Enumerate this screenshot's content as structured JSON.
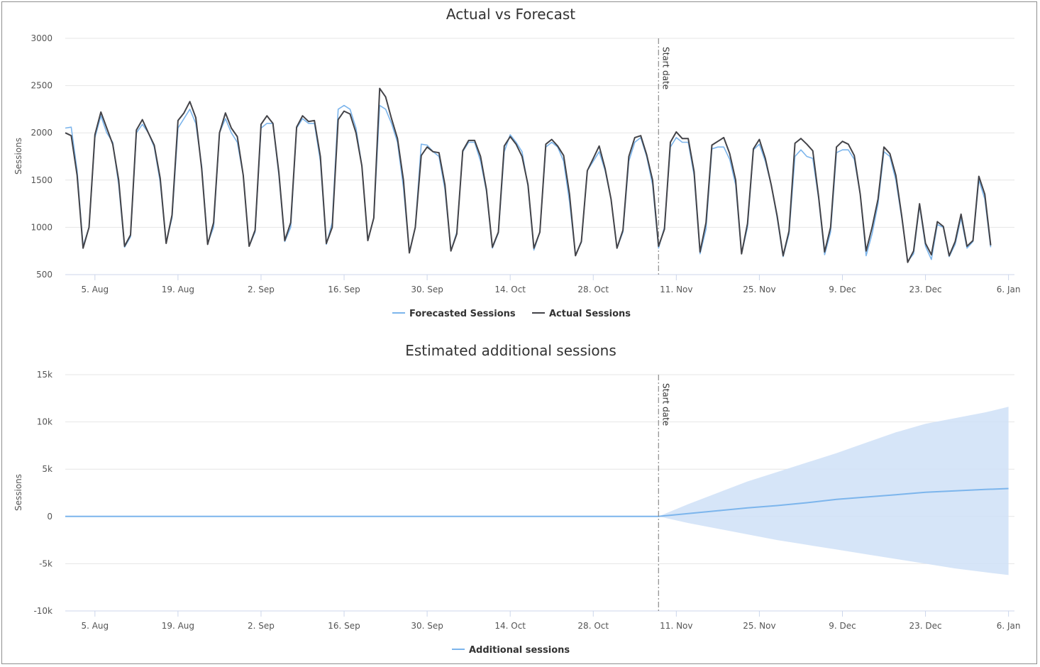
{
  "chart_data": [
    {
      "type": "line",
      "title": "Actual vs Forecast",
      "xlabel": "",
      "ylabel": "Sessions",
      "ylim": [
        500,
        3000
      ],
      "y_ticks": [
        "3000",
        "2500",
        "2000",
        "1500",
        "1000",
        "500"
      ],
      "x_tick_labels": [
        "5. Aug",
        "19. Aug",
        "2. Sep",
        "16. Sep",
        "30. Sep",
        "14. Oct",
        "28. Oct",
        "11. Nov",
        "25. Nov",
        "9. Dec",
        "23. Dec",
        "6. Jan"
      ],
      "x_range": [
        "2018-07-31",
        "2019-01-07"
      ],
      "grid": true,
      "legend_position": "bottom",
      "plot_line": {
        "date": "2018-11-08",
        "label": "Start date"
      },
      "series": [
        {
          "name": "Forecasted Sessions",
          "color": "#7cb5ec",
          "start": "2018-07-31",
          "values": [
            2050,
            2060,
            1600,
            800,
            1000,
            1950,
            2180,
            2000,
            1900,
            1450,
            790,
            900,
            2000,
            2090,
            2000,
            1850,
            1480,
            840,
            1100,
            2050,
            2150,
            2250,
            2100,
            1650,
            830,
            1000,
            2000,
            2150,
            2000,
            1900,
            1550,
            800,
            950,
            2050,
            2100,
            2100,
            1550,
            850,
            1000,
            2050,
            2150,
            2100,
            2100,
            1700,
            820,
            1050,
            2250,
            2290,
            2250,
            2050,
            1650,
            860,
            1100,
            2290,
            2250,
            2100,
            1900,
            1420,
            740,
            1000,
            1880,
            1870,
            1800,
            1750,
            1400,
            750,
            950,
            1800,
            1900,
            1900,
            1700,
            1380,
            780,
            940,
            1800,
            1980,
            1900,
            1800,
            1430,
            760,
            950,
            1850,
            1900,
            1850,
            1700,
            1270,
            710,
            840,
            1600,
            1700,
            1800,
            1600,
            1300,
            780,
            950,
            1700,
            1900,
            1950,
            1750,
            1450,
            780,
            1000,
            1850,
            1950,
            1900,
            1900,
            1550,
            720,
            980,
            1830,
            1850,
            1850,
            1720,
            1450,
            720,
            1000,
            1820,
            1880,
            1700,
            1450,
            1100,
            690,
            930,
            1750,
            1820,
            1750,
            1730,
            1300,
            710,
            950,
            1790,
            1820,
            1820,
            1720,
            1350,
            700,
            930,
            1250,
            1800,
            1750,
            1500,
            1100,
            640,
            720,
            1230,
            800,
            660,
            1030,
            1000,
            690,
            820,
            1100,
            780,
            850,
            1500,
            1300,
            790
          ]
        },
        {
          "name": "Actual Sessions",
          "color": "#434348",
          "start": "2018-07-31",
          "values": [
            2000,
            1970,
            1550,
            780,
            1000,
            1980,
            2220,
            2050,
            1880,
            1500,
            800,
            920,
            2030,
            2140,
            2000,
            1870,
            1520,
            830,
            1130,
            2130,
            2210,
            2330,
            2160,
            1620,
            820,
            1050,
            2000,
            2210,
            2050,
            1960,
            1550,
            800,
            970,
            2090,
            2180,
            2100,
            1580,
            860,
            1050,
            2060,
            2180,
            2120,
            2130,
            1750,
            830,
            1000,
            2140,
            2230,
            2200,
            2000,
            1650,
            860,
            1100,
            2470,
            2380,
            2150,
            1940,
            1500,
            730,
            1000,
            1760,
            1850,
            1800,
            1790,
            1450,
            750,
            930,
            1810,
            1920,
            1920,
            1750,
            1400,
            790,
            950,
            1860,
            1960,
            1880,
            1750,
            1450,
            780,
            950,
            1880,
            1930,
            1860,
            1760,
            1350,
            700,
            850,
            1600,
            1730,
            1860,
            1620,
            1300,
            780,
            970,
            1750,
            1950,
            1970,
            1770,
            1500,
            800,
            980,
            1900,
            2010,
            1940,
            1940,
            1590,
            740,
            1050,
            1870,
            1910,
            1950,
            1780,
            1500,
            720,
            1040,
            1830,
            1930,
            1730,
            1450,
            1120,
            700,
            960,
            1890,
            1940,
            1880,
            1810,
            1320,
            740,
            1000,
            1850,
            1910,
            1880,
            1760,
            1350,
            750,
            1000,
            1300,
            1850,
            1780,
            1550,
            1120,
            630,
            750,
            1250,
            830,
            710,
            1060,
            1010,
            700,
            850,
            1140,
            800,
            860,
            1540,
            1350,
            810
          ]
        }
      ]
    },
    {
      "type": "area",
      "title": "Estimated additional sessions",
      "xlabel": "",
      "ylabel": "Sessions",
      "ylim": [
        -10000,
        15000
      ],
      "y_ticks": [
        "15k",
        "10k",
        "5k",
        "0",
        "-5k",
        "-10k"
      ],
      "x_tick_labels": [
        "5. Aug",
        "19. Aug",
        "2. Sep",
        "16. Sep",
        "30. Sep",
        "14. Oct",
        "28. Oct",
        "11. Nov",
        "25. Nov",
        "9. Dec",
        "23. Dec",
        "6. Jan"
      ],
      "x_range": [
        "2018-07-31",
        "2019-01-07"
      ],
      "grid": true,
      "legend_position": "bottom",
      "plot_line": {
        "date": "2018-11-08",
        "label": "Start date"
      },
      "series": [
        {
          "name": "Additional sessions",
          "color": "#7cb5ec",
          "points": [
            [
              "2018-07-31",
              0
            ],
            [
              "2018-11-08",
              0
            ],
            [
              "2018-11-13",
              300
            ],
            [
              "2018-11-18",
              600
            ],
            [
              "2018-11-23",
              900
            ],
            [
              "2018-11-28",
              1150
            ],
            [
              "2018-12-03",
              1450
            ],
            [
              "2018-12-08",
              1800
            ],
            [
              "2018-12-13",
              2050
            ],
            [
              "2018-12-18",
              2300
            ],
            [
              "2018-12-23",
              2550
            ],
            [
              "2018-12-28",
              2700
            ],
            [
              "2019-01-02",
              2850
            ],
            [
              "2019-01-06",
              2950
            ]
          ]
        },
        {
          "name": "range",
          "color": "#cfe1f7",
          "points_high": [
            [
              "2018-11-08",
              0
            ],
            [
              "2018-11-13",
              1300
            ],
            [
              "2018-11-18",
              2500
            ],
            [
              "2018-11-23",
              3700
            ],
            [
              "2018-11-28",
              4700
            ],
            [
              "2018-12-03",
              5700
            ],
            [
              "2018-12-08",
              6700
            ],
            [
              "2018-12-13",
              7800
            ],
            [
              "2018-12-18",
              8900
            ],
            [
              "2018-12-23",
              9800
            ],
            [
              "2018-12-28",
              10400
            ],
            [
              "2019-01-02",
              11000
            ],
            [
              "2019-01-06",
              11600
            ]
          ],
          "points_low": [
            [
              "2018-11-08",
              0
            ],
            [
              "2018-11-13",
              -700
            ],
            [
              "2018-11-18",
              -1300
            ],
            [
              "2018-11-23",
              -1900
            ],
            [
              "2018-11-28",
              -2500
            ],
            [
              "2018-12-03",
              -3000
            ],
            [
              "2018-12-08",
              -3500
            ],
            [
              "2018-12-13",
              -4000
            ],
            [
              "2018-12-18",
              -4500
            ],
            [
              "2018-12-23",
              -5000
            ],
            [
              "2018-12-28",
              -5500
            ],
            [
              "2019-01-02",
              -5900
            ],
            [
              "2019-01-06",
              -6200
            ]
          ]
        }
      ]
    }
  ]
}
